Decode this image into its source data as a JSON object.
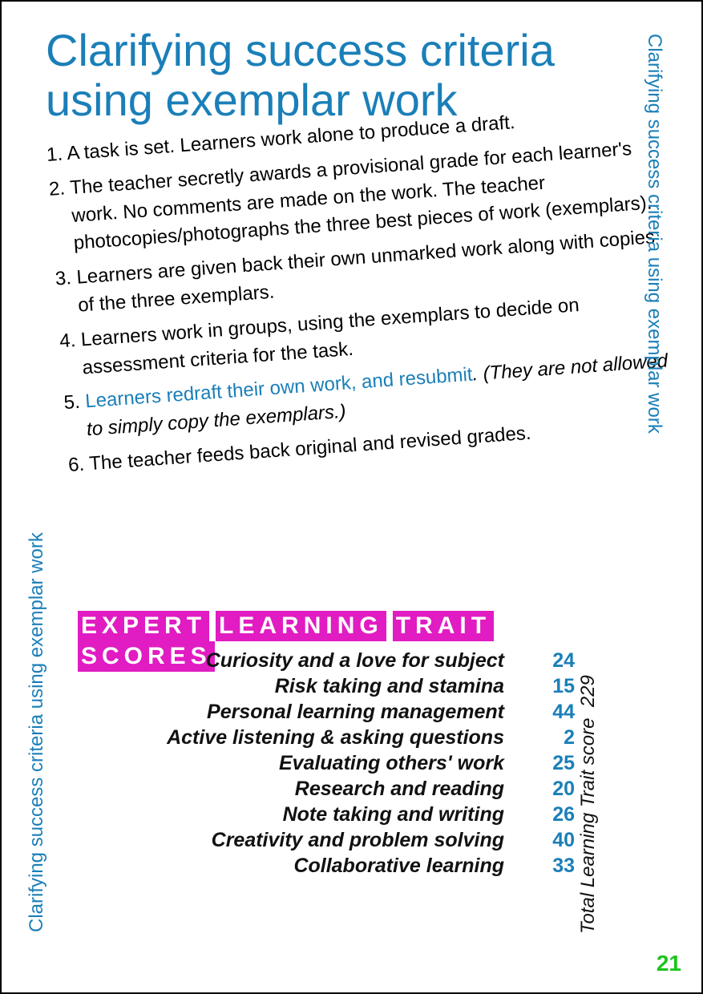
{
  "title": "Clarifying success criteria using exemplar work",
  "sidebar_text": "Clarifying success criteria using exemplar work",
  "steps": [
    {
      "num": "1.",
      "text": "A task is set. Learners work alone to produce a draft."
    },
    {
      "num": "2.",
      "text": "The teacher secretly awards a provisional grade for each learner's work. No comments are made on the work. The teacher photocopies/photographs the three best pieces of work (exemplars)."
    },
    {
      "num": "3.",
      "text": "Learners are given back their own unmarked work along with copies of the three exemplars."
    },
    {
      "num": "4.",
      "text": "Learners work in groups, using the exemplars to decide on assessment criteria for the task."
    },
    {
      "num": "5.",
      "blue": "Learners redraft their own work, and resubmit",
      "ital": ". (They are not allowed to simply copy the exemplars.)"
    },
    {
      "num": "6.",
      "text": "The teacher feeds back original and revised grades."
    }
  ],
  "banner": {
    "words": [
      "EXPERT",
      "LEARNING",
      "TRAIT",
      "SCORES"
    ],
    "bg_color": "#e01cc2",
    "text_color": "#ffffff"
  },
  "traits": [
    {
      "label": "Curiosity and a love for subject",
      "score": 24
    },
    {
      "label": "Risk taking and stamina",
      "score": 15
    },
    {
      "label": "Personal learning management",
      "score": 44
    },
    {
      "label": "Active listening & asking questions",
      "score": 2
    },
    {
      "label": "Evaluating others' work",
      "score": 25
    },
    {
      "label": "Research and reading",
      "score": 20
    },
    {
      "label": "Note taking and writing",
      "score": 26
    },
    {
      "label": "Creativity and problem solving",
      "score": 40
    },
    {
      "label": "Collaborative learning",
      "score": 33
    }
  ],
  "total": {
    "label": "Total Learning Trait score",
    "value": 229
  },
  "page_number": 21,
  "colors": {
    "title": "#1a7fb8",
    "score": "#1a7fb8",
    "banner_bg": "#e01cc2",
    "page_num": "#1ec41e",
    "body_text": "#000000"
  }
}
